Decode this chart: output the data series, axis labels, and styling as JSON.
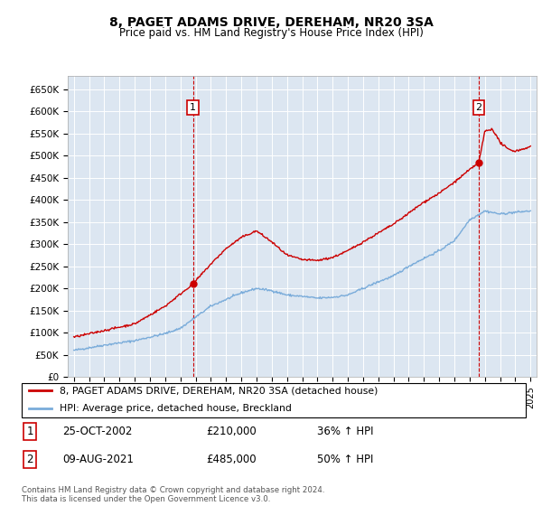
{
  "title": "8, PAGET ADAMS DRIVE, DEREHAM, NR20 3SA",
  "subtitle": "Price paid vs. HM Land Registry's House Price Index (HPI)",
  "plot_bg_color": "#dce6f1",
  "ylim": [
    0,
    680000
  ],
  "yticks": [
    0,
    50000,
    100000,
    150000,
    200000,
    250000,
    300000,
    350000,
    400000,
    450000,
    500000,
    550000,
    600000,
    650000
  ],
  "ytick_labels": [
    "£0",
    "£50K",
    "£100K",
    "£150K",
    "£200K",
    "£250K",
    "£300K",
    "£350K",
    "£400K",
    "£450K",
    "£500K",
    "£550K",
    "£600K",
    "£650K"
  ],
  "xlim_start": 1994.6,
  "xlim_end": 2025.4,
  "xtick_years": [
    1995,
    1996,
    1997,
    1998,
    1999,
    2000,
    2001,
    2002,
    2003,
    2004,
    2005,
    2006,
    2007,
    2008,
    2009,
    2010,
    2011,
    2012,
    2013,
    2014,
    2015,
    2016,
    2017,
    2018,
    2019,
    2020,
    2021,
    2022,
    2023,
    2024,
    2025
  ],
  "red_line_color": "#cc0000",
  "blue_line_color": "#7aacda",
  "sale1_x": 2002.82,
  "sale1_y": 210000,
  "sale2_x": 2021.61,
  "sale2_y": 485000,
  "legend_line1": "8, PAGET ADAMS DRIVE, DEREHAM, NR20 3SA (detached house)",
  "legend_line2": "HPI: Average price, detached house, Breckland",
  "table_row1": [
    "1",
    "25-OCT-2002",
    "£210,000",
    "36% ↑ HPI"
  ],
  "table_row2": [
    "2",
    "09-AUG-2021",
    "£485,000",
    "50% ↑ HPI"
  ],
  "footer": "Contains HM Land Registry data © Crown copyright and database right 2024.\nThis data is licensed under the Open Government Licence v3.0."
}
